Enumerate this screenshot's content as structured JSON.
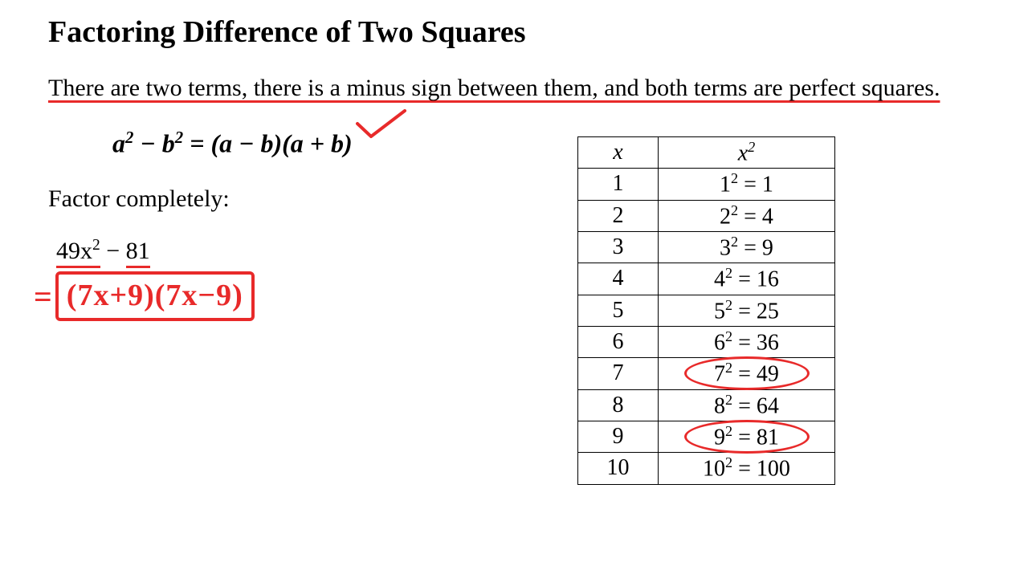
{
  "title": "Factoring Difference of Two Squares",
  "description": "There are two terms, there is a minus sign between them, and both terms are perfect squares.",
  "formula_html": "a<sup>2</sup> − b<sup>2</sup> = (a − b)(a + b)",
  "factor_label": "Factor completely:",
  "problem_lhs_html": "49x<sup>2</sup>",
  "problem_op": " − ",
  "problem_rhs": "81",
  "answer_eq": "=",
  "answer_text": "(7x+9)(7x−9)",
  "table": {
    "head_x": "x",
    "head_sq_html": "x<sup>2</sup>",
    "rows": [
      {
        "x": "1",
        "sq_html": "1<sup>2</sup> = 1",
        "circled": false
      },
      {
        "x": "2",
        "sq_html": "2<sup>2</sup> = 4",
        "circled": false
      },
      {
        "x": "3",
        "sq_html": "3<sup>2</sup> = 9",
        "circled": false
      },
      {
        "x": "4",
        "sq_html": "4<sup>2</sup> = 16",
        "circled": false
      },
      {
        "x": "5",
        "sq_html": "5<sup>2</sup> = 25",
        "circled": false
      },
      {
        "x": "6",
        "sq_html": "6<sup>2</sup> = 36",
        "circled": false
      },
      {
        "x": "7",
        "sq_html": "7<sup>2</sup> = 49",
        "circled": true
      },
      {
        "x": "8",
        "sq_html": "8<sup>2</sup> = 64",
        "circled": false
      },
      {
        "x": "9",
        "sq_html": "9<sup>2</sup> = 81",
        "circled": true
      },
      {
        "x": "10",
        "sq_html": "10<sup>2</sup> = 100",
        "circled": false
      }
    ]
  },
  "colors": {
    "annotation": "#e82a2a",
    "text": "#000000",
    "bg": "#ffffff"
  }
}
